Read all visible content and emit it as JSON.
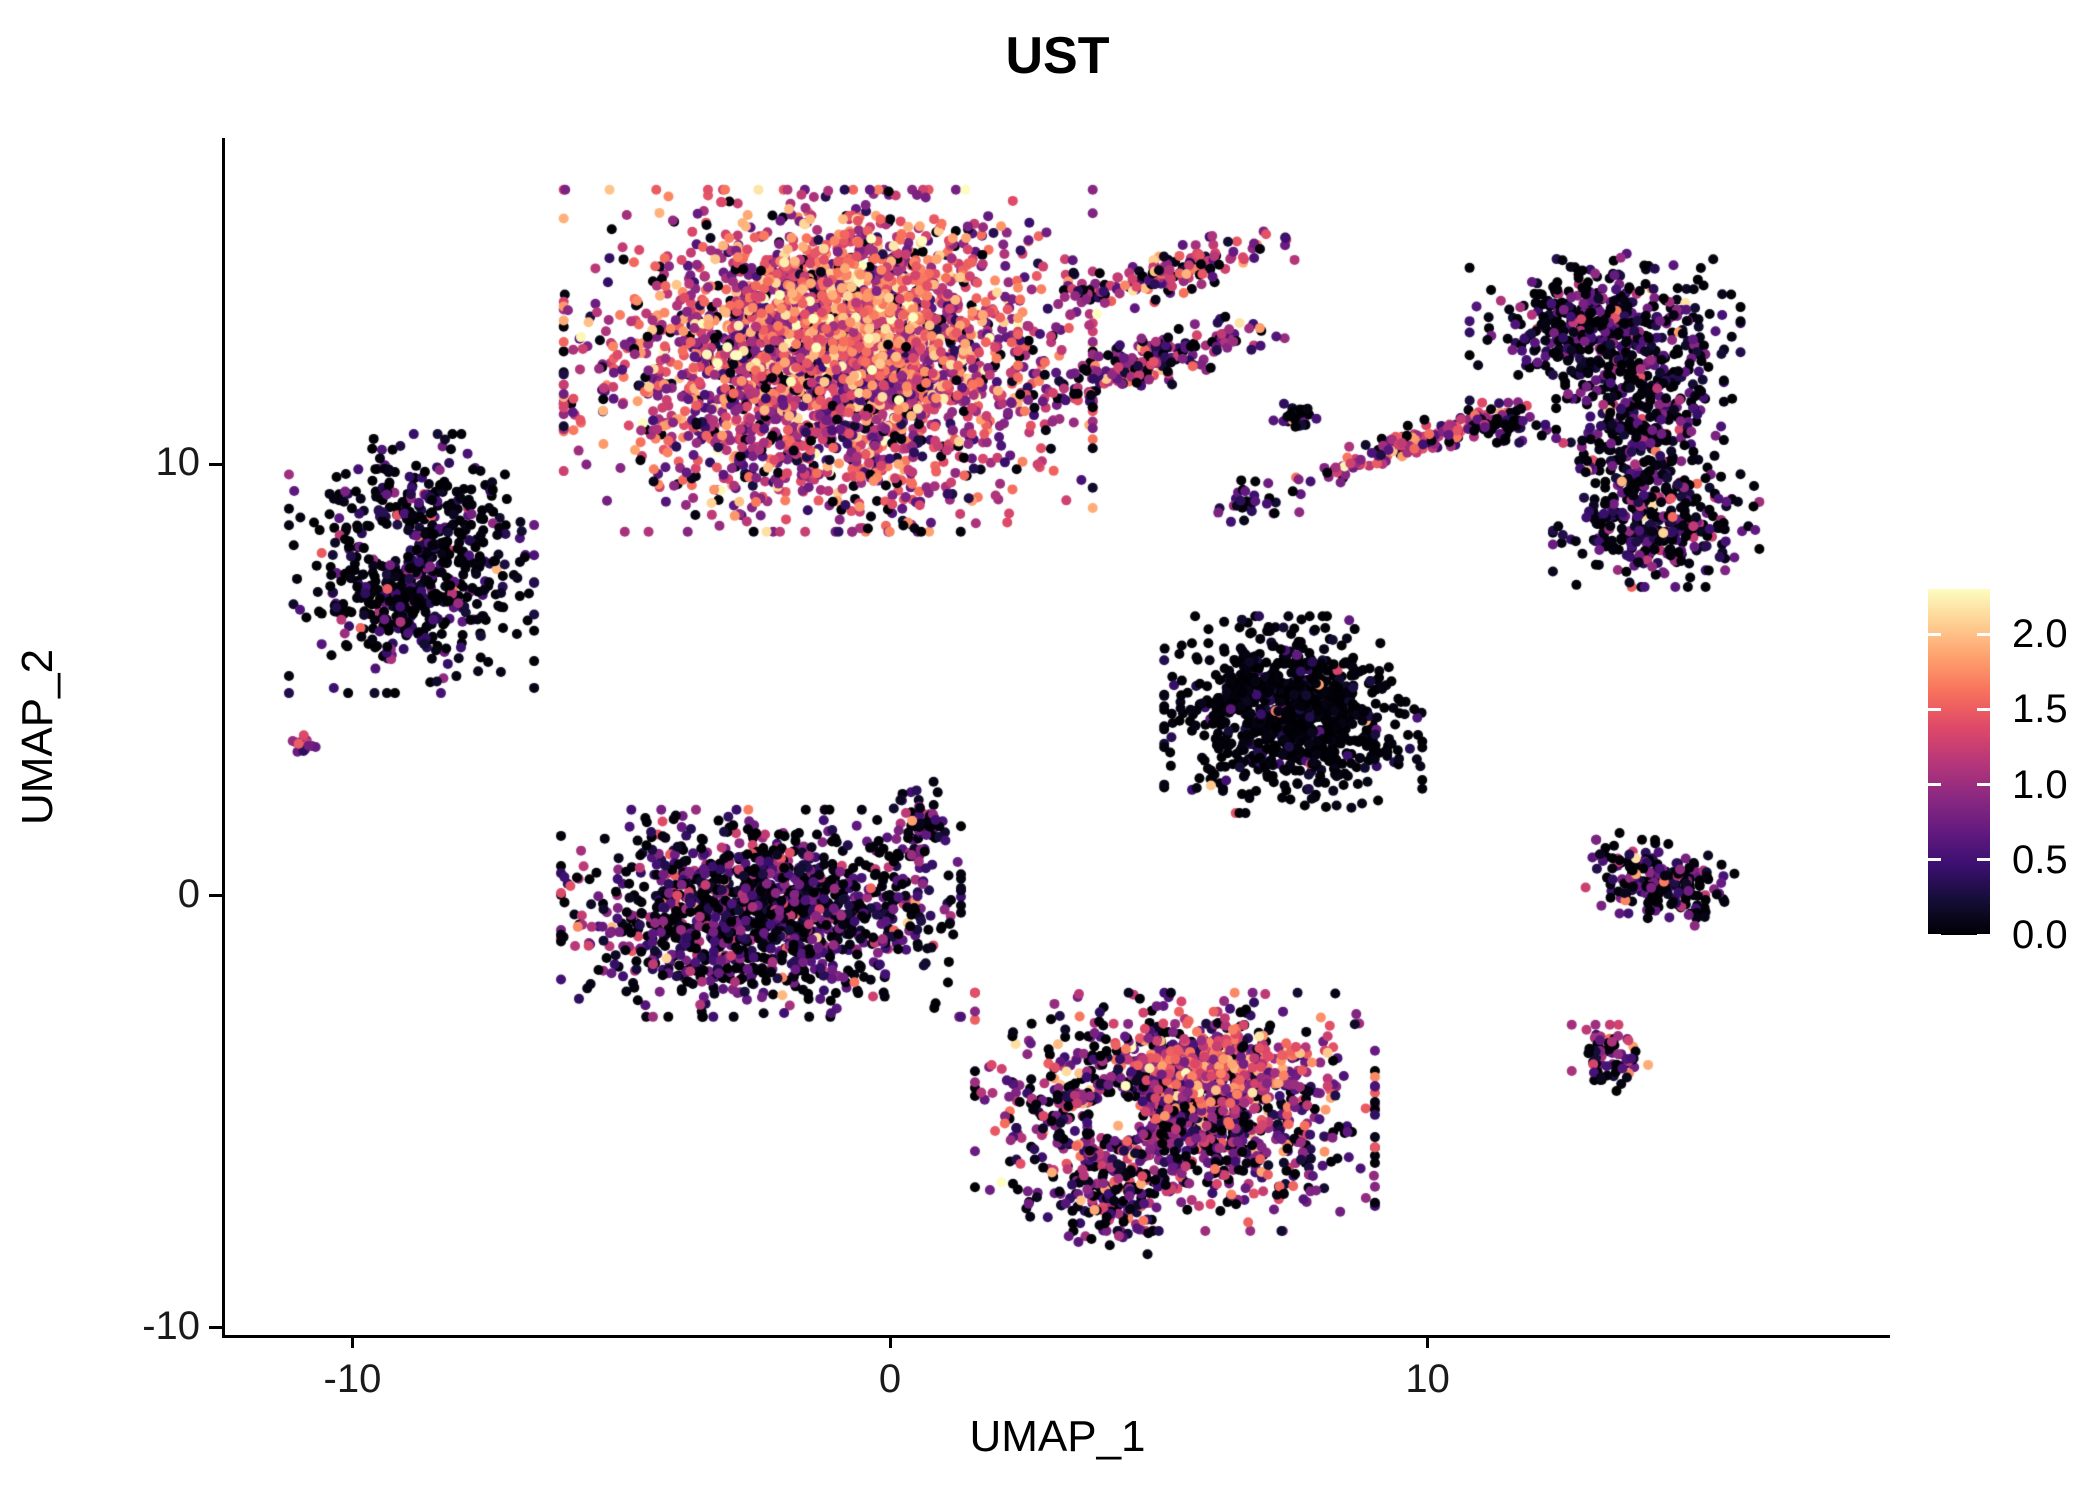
{
  "chart_data": {
    "type": "scatter",
    "title": "UST",
    "xlabel": "UMAP_1",
    "ylabel": "UMAP_2",
    "xlim": [
      -12.37,
      18.6
    ],
    "ylim": [
      -10.17,
      17.56
    ],
    "grid": false,
    "x_ticks": {
      "values": [
        -10,
        0,
        10
      ],
      "labels": [
        "-10",
        "0",
        "10"
      ]
    },
    "y_ticks": {
      "values": [
        -10,
        0,
        10
      ],
      "labels": [
        "-10",
        "0",
        "10"
      ]
    },
    "legend": {
      "position": "right",
      "bar_min": 0.0,
      "bar_max": 2.3,
      "tick_values": [
        2.0,
        1.5,
        1.0,
        0.5,
        0.0
      ],
      "tick_labels": [
        "2.0",
        "1.5",
        "1.0",
        "0.5",
        "0.0"
      ]
    },
    "colormap": {
      "name": "magma",
      "stops": [
        {
          "t": 0.0,
          "color": "#000004"
        },
        {
          "t": 0.1,
          "color": "#140e36"
        },
        {
          "t": 0.2,
          "color": "#3b0f70"
        },
        {
          "t": 0.3,
          "color": "#641a80"
        },
        {
          "t": 0.4,
          "color": "#8c2981"
        },
        {
          "t": 0.5,
          "color": "#b73779"
        },
        {
          "t": 0.6,
          "color": "#de4968"
        },
        {
          "t": 0.7,
          "color": "#f7705c"
        },
        {
          "t": 0.8,
          "color": "#fe9f6d"
        },
        {
          "t": 0.9,
          "color": "#fecf92"
        },
        {
          "t": 1.0,
          "color": "#fcfdbf"
        }
      ]
    },
    "point_radius_px": 5,
    "seed": 1337,
    "clusters": [
      {
        "name": "top-large-blob",
        "cx": -1.15,
        "cy": 12.4,
        "sx": 2.05,
        "sy": 1.65,
        "angle": 0,
        "count": 2800,
        "expr_mean": 1.15,
        "expr_sd": 0.5,
        "zero_frac": 0.09
      },
      {
        "name": "top-large-bright-core",
        "cx": -0.5,
        "cy": 13.4,
        "sx": 1.2,
        "sy": 0.95,
        "angle": 0,
        "count": 550,
        "expr_mean": 1.7,
        "expr_sd": 0.35,
        "zero_frac": 0.02
      },
      {
        "name": "top-arm-upper",
        "cx": 5.0,
        "cy": 14.35,
        "sx": 1.05,
        "sy": 0.22,
        "angle": 0.36,
        "count": 160,
        "expr_mean": 1.0,
        "expr_sd": 0.5,
        "zero_frac": 0.15
      },
      {
        "name": "top-arm-lower",
        "cx": 4.75,
        "cy": 12.3,
        "sx": 1.1,
        "sy": 0.25,
        "angle": 0.37,
        "count": 200,
        "expr_mean": 0.9,
        "expr_sd": 0.5,
        "zero_frac": 0.2
      },
      {
        "name": "left-dark-blob",
        "cx": -8.9,
        "cy": 7.7,
        "sx": 0.95,
        "sy": 1.25,
        "angle": 0,
        "count": 680,
        "expr_mean": 0.3,
        "expr_sd": 0.4,
        "zero_frac": 0.5,
        "hole": [
          -9.3,
          8.2,
          0.42
        ]
      },
      {
        "name": "left-tiny-dot",
        "cx": -10.9,
        "cy": 3.5,
        "sx": 0.14,
        "sy": 0.12,
        "angle": 0,
        "count": 14,
        "expr_mean": 1.0,
        "expr_sd": 0.35,
        "zero_frac": 0.1
      },
      {
        "name": "center-left-blob",
        "cx": -2.4,
        "cy": -0.4,
        "sx": 1.55,
        "sy": 1.0,
        "angle": 0,
        "count": 1350,
        "expr_mean": 0.5,
        "expr_sd": 0.45,
        "zero_frac": 0.35
      },
      {
        "name": "center-left-spur",
        "cx": 0.55,
        "cy": 1.6,
        "sx": 0.2,
        "sy": 0.55,
        "angle": 0,
        "count": 70,
        "expr_mean": 0.55,
        "expr_sd": 0.4,
        "zero_frac": 0.3
      },
      {
        "name": "center-right-dark-blob",
        "cx": 7.5,
        "cy": 4.2,
        "sx": 1.0,
        "sy": 0.95,
        "angle": 0,
        "count": 900,
        "expr_mean": 0.1,
        "expr_sd": 0.25,
        "zero_frac": 0.72
      },
      {
        "name": "right-band-top",
        "cx": 13.3,
        "cy": 13.2,
        "sx": 1.05,
        "sy": 0.7,
        "angle": 0,
        "count": 430,
        "expr_mean": 0.45,
        "expr_sd": 0.4,
        "zero_frac": 0.45
      },
      {
        "name": "right-band-mid",
        "cx": 13.95,
        "cy": 10.8,
        "sx": 0.65,
        "sy": 1.05,
        "angle": 0,
        "count": 390,
        "expr_mean": 0.45,
        "expr_sd": 0.42,
        "zero_frac": 0.45
      },
      {
        "name": "right-band-bottom",
        "cx": 14.25,
        "cy": 8.6,
        "sx": 0.8,
        "sy": 0.6,
        "angle": 0,
        "count": 290,
        "expr_mean": 0.5,
        "expr_sd": 0.42,
        "zero_frac": 0.42
      },
      {
        "name": "mid-small-dot-a",
        "cx": 7.6,
        "cy": 11.1,
        "sx": 0.22,
        "sy": 0.18,
        "angle": 0,
        "count": 26,
        "expr_mean": 0.45,
        "expr_sd": 0.35,
        "zero_frac": 0.35
      },
      {
        "name": "mid-small-dot-b",
        "cx": 6.8,
        "cy": 9.1,
        "sx": 0.35,
        "sy": 0.22,
        "angle": 0,
        "count": 30,
        "expr_mean": 0.4,
        "expr_sd": 0.35,
        "zero_frac": 0.4
      },
      {
        "name": "mid-pink-streak",
        "cx": 9.8,
        "cy": 10.55,
        "sx": 1.0,
        "sy": 0.16,
        "angle": 0.42,
        "count": 140,
        "expr_mean": 1.1,
        "expr_sd": 0.45,
        "zero_frac": 0.12
      },
      {
        "name": "mid-streak-dark-end",
        "cx": 11.35,
        "cy": 10.95,
        "sx": 0.4,
        "sy": 0.22,
        "angle": 0,
        "count": 55,
        "expr_mean": 0.4,
        "expr_sd": 0.35,
        "zero_frac": 0.5
      },
      {
        "name": "bottom-ring-blob",
        "cx": 5.3,
        "cy": -5.0,
        "sx": 1.55,
        "sy": 1.15,
        "angle": 0,
        "count": 1300,
        "expr_mean": 0.8,
        "expr_sd": 0.55,
        "zero_frac": 0.2,
        "hole": [
          4.2,
          -5.1,
          0.5
        ]
      },
      {
        "name": "bottom-orange-core",
        "cx": 6.1,
        "cy": -4.0,
        "sx": 0.85,
        "sy": 0.55,
        "angle": 0,
        "count": 260,
        "expr_mean": 1.35,
        "expr_sd": 0.4,
        "zero_frac": 0.05
      },
      {
        "name": "bottom-tail",
        "cx": 3.9,
        "cy": -7.1,
        "sx": 0.55,
        "sy": 0.5,
        "angle": 0,
        "count": 100,
        "expr_mean": 0.7,
        "expr_sd": 0.5,
        "zero_frac": 0.25
      },
      {
        "name": "right-arrow-blob",
        "cx": 14.3,
        "cy": 0.3,
        "sx": 0.6,
        "sy": 0.38,
        "angle": -0.35,
        "count": 210,
        "expr_mean": 0.5,
        "expr_sd": 0.45,
        "zero_frac": 0.4
      },
      {
        "name": "right-small-dot",
        "cx": 13.4,
        "cy": -3.75,
        "sx": 0.3,
        "sy": 0.32,
        "angle": 0,
        "count": 75,
        "expr_mean": 0.7,
        "expr_sd": 0.5,
        "zero_frac": 0.28
      }
    ]
  }
}
